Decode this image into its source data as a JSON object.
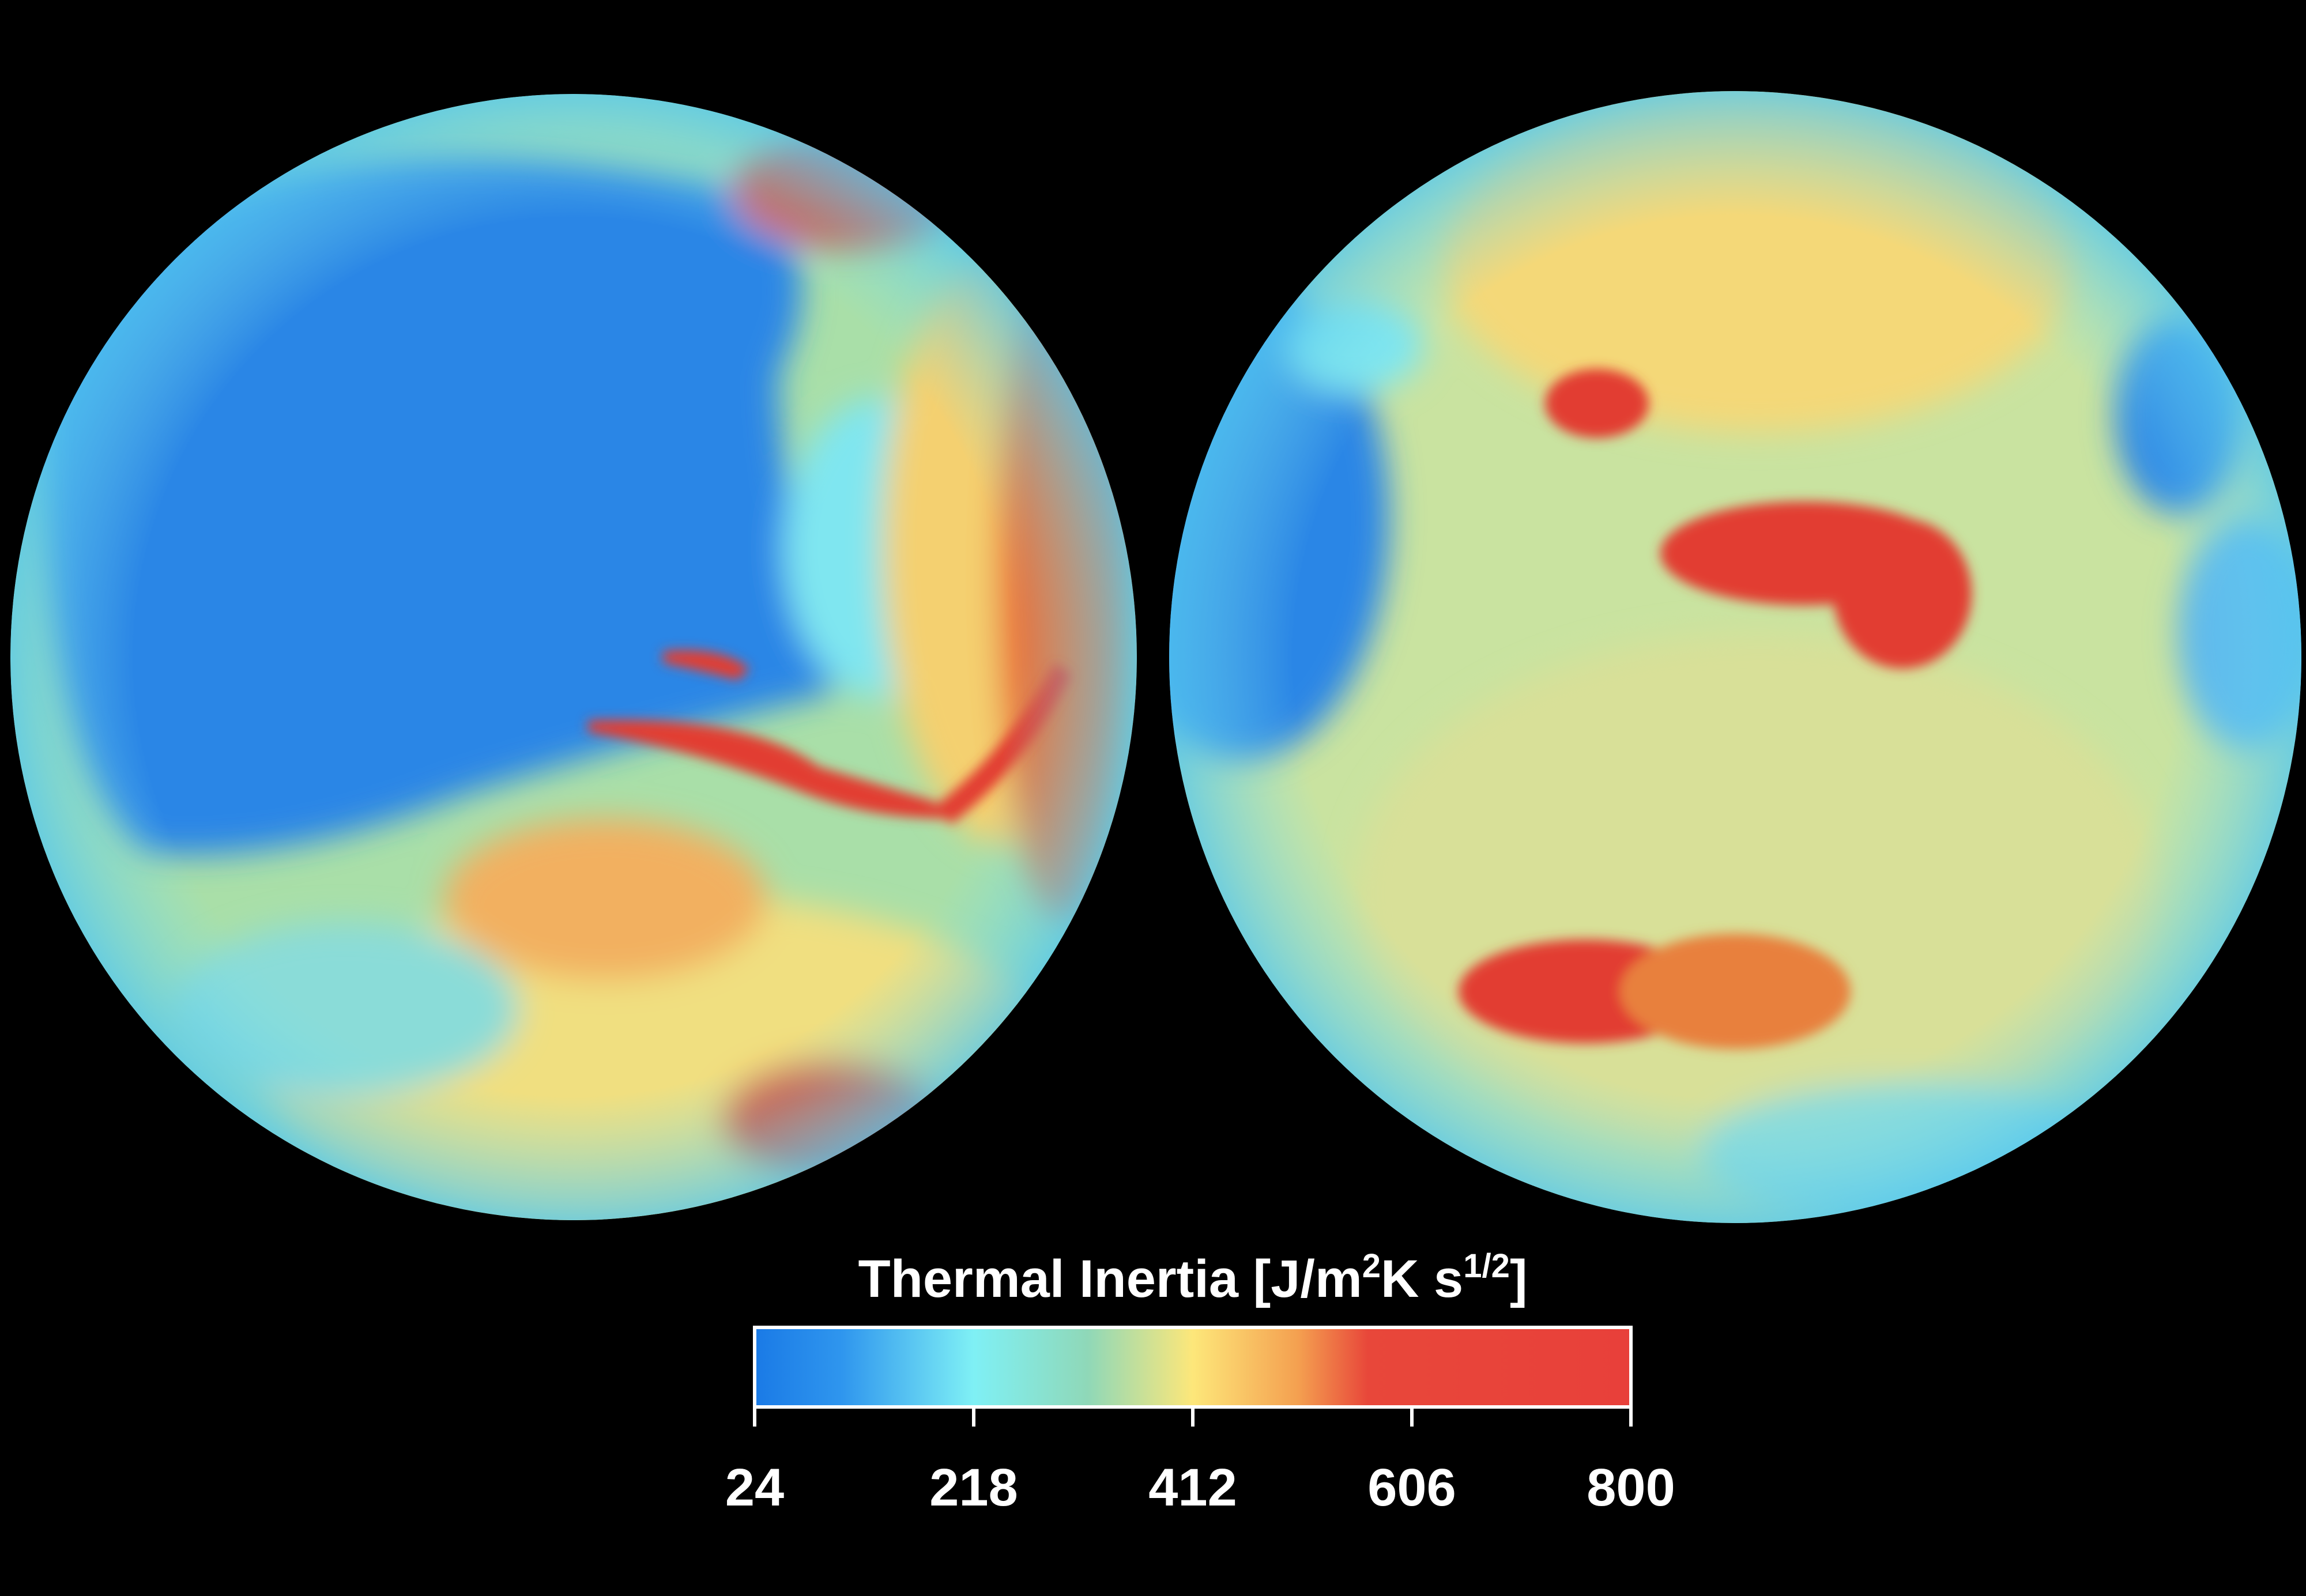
{
  "colorbar": {
    "title_parts": [
      "Thermal Inertia [J/m",
      "2",
      "K s",
      "1/2",
      "]"
    ],
    "lim": [
      24,
      800
    ],
    "ticks": [
      24,
      218,
      412,
      606,
      800
    ]
  }
}
